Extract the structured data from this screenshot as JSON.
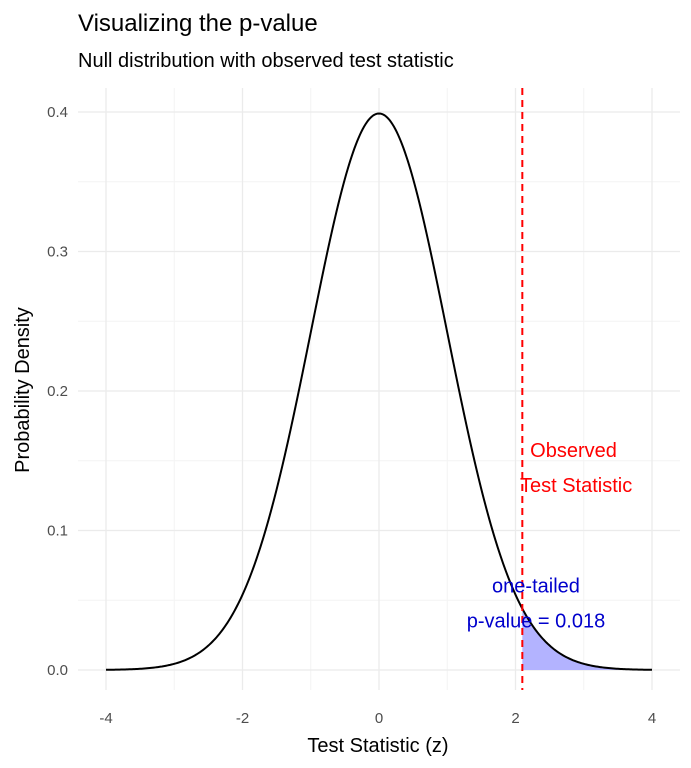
{
  "chart_data": {
    "type": "line",
    "title": "Visualizing the p-value",
    "subtitle": "Null distribution with observed test statistic",
    "xlabel": "Test Statistic (z)",
    "ylabel": "Probability Density",
    "xlim": [
      -4,
      4
    ],
    "ylim": [
      0,
      0.4
    ],
    "x_ticks": [
      -4,
      -2,
      0,
      2,
      4
    ],
    "y_ticks": [
      0.0,
      0.1,
      0.2,
      0.3,
      0.4
    ],
    "x_tick_labels": [
      "-4",
      "-2",
      "0",
      "2",
      "4"
    ],
    "y_tick_labels": [
      "0.0",
      "0.1",
      "0.2",
      "0.3",
      "0.4"
    ],
    "grid": true,
    "distribution": "standard normal",
    "series": [
      {
        "x": [
          -4.0,
          -3.5,
          -3.0,
          -2.5,
          -2.0,
          -1.5,
          -1.0,
          -0.5,
          0.0,
          0.5,
          1.0,
          1.5,
          2.0,
          2.5,
          3.0,
          3.5,
          4.0
        ],
        "values": [
          0.0001,
          0.0009,
          0.0044,
          0.0175,
          0.054,
          0.1295,
          0.242,
          0.3521,
          0.3989,
          0.3521,
          0.242,
          0.1295,
          0.054,
          0.0175,
          0.0044,
          0.0009,
          0.0001
        ],
        "color": "#000000"
      }
    ],
    "observed_statistic": 2.1,
    "observed_line_color": "#ff0000",
    "shaded_region": {
      "from": 2.1,
      "to": 4.0,
      "color": "#b3b3ff"
    },
    "annotations": [
      {
        "lines": [
          "Observed",
          " Test Statistic"
        ],
        "x": 2.85,
        "y": 0.145,
        "color": "#ff0000"
      },
      {
        "lines": [
          "one-tailed",
          "p-value = 0.018"
        ],
        "x": 2.3,
        "y": 0.048,
        "color": "#0000cc"
      }
    ]
  }
}
